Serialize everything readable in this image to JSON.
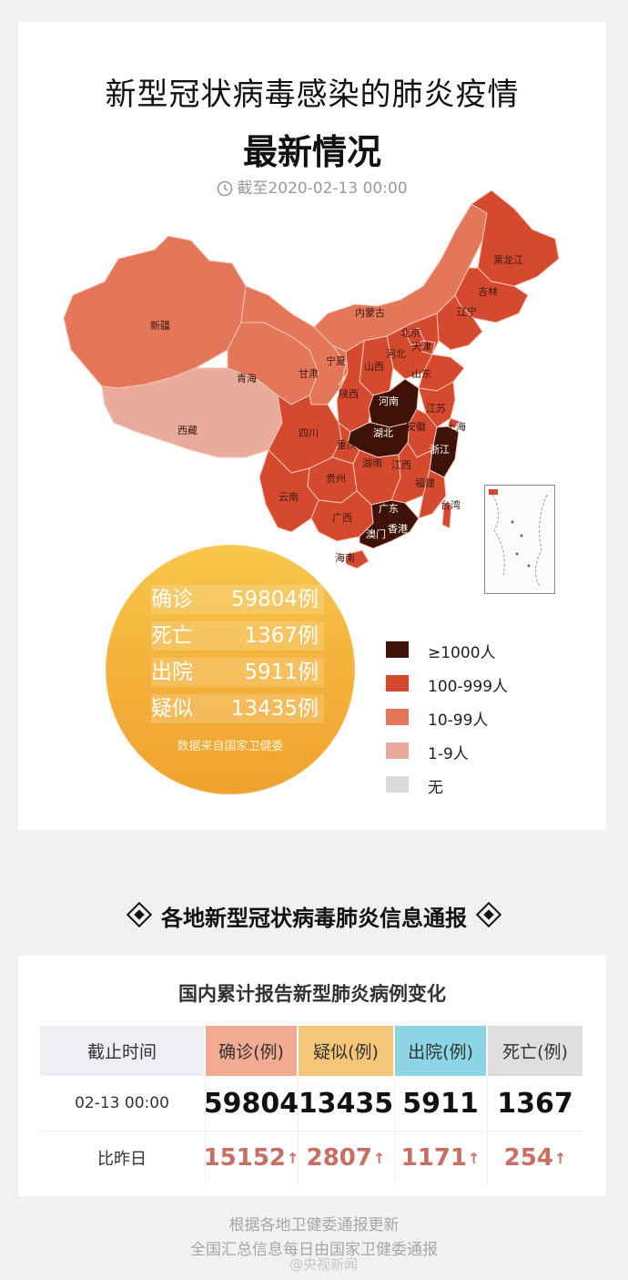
{
  "header": {
    "title_line1": "新型冠状病毒感染的肺炎疫情",
    "title_line2": "最新情况",
    "timestamp": "截至2020-02-13 00:00"
  },
  "map": {
    "provinces": {
      "heilongjiang": "黑龙江",
      "jilin": "吉林",
      "liaoning": "辽宁",
      "neimenggu": "内蒙古",
      "xinjiang": "新疆",
      "xizang": "西藏",
      "qinghai": "青海",
      "gansu": "甘肃",
      "ningxia": "宁夏",
      "shaanxi": "陕西",
      "shanxi": "山西",
      "hebei": "河北",
      "beijing": "北京",
      "tianjin": "天津",
      "shandong": "山东",
      "henan": "河南",
      "jiangsu": "江苏",
      "shanghai": "上海",
      "anhui": "安徽",
      "hubei": "湖北",
      "sichuan": "四川",
      "chongqing": "重庆",
      "zhejiang": "浙江",
      "guizhou": "贵州",
      "hunan": "湖南",
      "jiangxi": "江西",
      "fujian": "福建",
      "yunnan": "云南",
      "guangxi": "广西",
      "guangdong": "广东",
      "taiwan": "台湾",
      "hongkong": "香港",
      "macau": "澳门",
      "hainan": "海南"
    },
    "colors": {
      "level_1000_plus": "#3e1208",
      "level_100_999": "#d54a2e",
      "level_10_99": "#e4775a",
      "level_1_9": "#e9ab9b",
      "level_none": "#d9d9d9"
    }
  },
  "stats": {
    "confirmed_label": "确诊",
    "confirmed_value": "59804例",
    "deaths_label": "死亡",
    "deaths_value": "1367例",
    "recovered_label": "出院",
    "recovered_value": "5911例",
    "suspected_label": "疑似",
    "suspected_value": "13435例",
    "source": "数据来自国家卫健委"
  },
  "legend": [
    {
      "label": "≥1000人",
      "color": "#3e1208"
    },
    {
      "label": "100-999人",
      "color": "#d54a2e"
    },
    {
      "label": "10-99人",
      "color": "#e4775a"
    },
    {
      "label": "1-9人",
      "color": "#e9ab9b"
    },
    {
      "label": "无",
      "color": "#d9d9d9"
    }
  ],
  "section_heading": "各地新型冠状病毒肺炎信息通报",
  "table": {
    "title": "国内累计报告新型肺炎病例变化",
    "headers": [
      "截止时间",
      "确诊(例)",
      "疑似(例)",
      "出院(例)",
      "死亡(例)"
    ],
    "row_current": [
      "02-13 00:00",
      "59804",
      "13435",
      "5911",
      "1367"
    ],
    "row_delta": [
      "比昨日",
      "15152",
      "2807",
      "1171",
      "254"
    ],
    "delta_arrow": "↑"
  },
  "footer": {
    "line1": "根据各地卫健委通报更新",
    "line2": "全国汇总信息每日由国家卫健委通报",
    "watermark": "@央视新闻"
  }
}
